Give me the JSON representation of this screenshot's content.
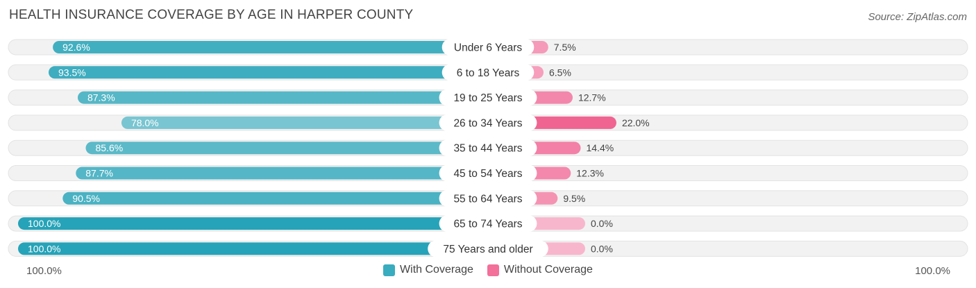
{
  "title": "HEALTH INSURANCE COVERAGE BY AGE IN HARPER COUNTY",
  "source": "Source: ZipAtlas.com",
  "footer": {
    "left": "100.0%",
    "right": "100.0%"
  },
  "legend": {
    "with_label": "With Coverage",
    "without_label": "Without Coverage",
    "with_color": "#39acbf",
    "without_color": "#f2709a"
  },
  "chart_data": {
    "type": "bar",
    "orientation": "horizontal-diverging",
    "title": "HEALTH INSURANCE COVERAGE BY AGE IN HARPER COUNTY",
    "categories": [
      "Under 6 Years",
      "6 to 18 Years",
      "19 to 25 Years",
      "26 to 34 Years",
      "35 to 44 Years",
      "45 to 54 Years",
      "55 to 64 Years",
      "65 to 74 Years",
      "75 Years and older"
    ],
    "series": [
      {
        "name": "With Coverage",
        "values": [
          92.6,
          93.5,
          87.3,
          78.0,
          85.6,
          87.7,
          90.5,
          100.0,
          100.0
        ],
        "labels": [
          "92.6%",
          "93.5%",
          "87.3%",
          "78.0%",
          "85.6%",
          "87.7%",
          "90.5%",
          "100.0%",
          "100.0%"
        ]
      },
      {
        "name": "Without Coverage",
        "values": [
          7.5,
          6.5,
          12.7,
          22.0,
          14.4,
          12.3,
          9.5,
          0.0,
          0.0
        ],
        "labels": [
          "7.5%",
          "6.5%",
          "12.7%",
          "22.0%",
          "14.4%",
          "12.3%",
          "9.5%",
          "0.0%",
          "0.0%"
        ]
      }
    ],
    "xlim": [
      0,
      100
    ],
    "legend_position": "bottom-center"
  }
}
